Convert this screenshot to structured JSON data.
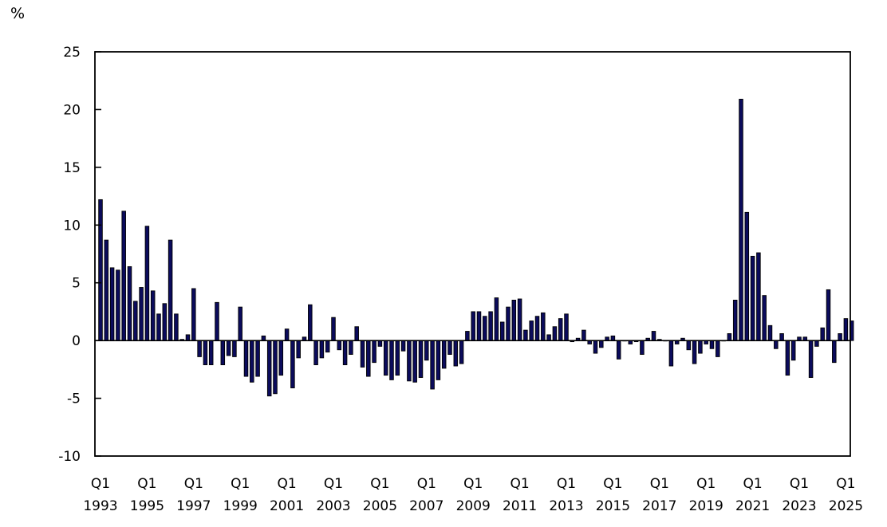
{
  "chart_data": {
    "type": "bar",
    "title": "",
    "ylabel": "%",
    "xlabel": "",
    "ylim": [
      -10,
      25
    ],
    "yticks": [
      -10,
      -5,
      0,
      5,
      10,
      15,
      20,
      25
    ],
    "grid": false,
    "legend": null,
    "bar_color": "#0b0b5c",
    "bar_edge_color": "#000000",
    "start": "1993 Q1",
    "end": "2025 Q2",
    "frequency": "quarterly",
    "x_tick_labels": [
      {
        "q": "Q1",
        "year": "1993",
        "index": 0
      },
      {
        "q": "Q1",
        "year": "1995",
        "index": 8
      },
      {
        "q": "Q1",
        "year": "1997",
        "index": 16
      },
      {
        "q": "Q1",
        "year": "1999",
        "index": 24
      },
      {
        "q": "Q1",
        "year": "2001",
        "index": 32
      },
      {
        "q": "Q1",
        "year": "2003",
        "index": 40
      },
      {
        "q": "Q1",
        "year": "2005",
        "index": 48
      },
      {
        "q": "Q1",
        "year": "2007",
        "index": 56
      },
      {
        "q": "Q1",
        "year": "2009",
        "index": 64
      },
      {
        "q": "Q1",
        "year": "2011",
        "index": 72
      },
      {
        "q": "Q1",
        "year": "2013",
        "index": 80
      },
      {
        "q": "Q1",
        "year": "2015",
        "index": 88
      },
      {
        "q": "Q1",
        "year": "2017",
        "index": 96
      },
      {
        "q": "Q1",
        "year": "2019",
        "index": 104
      },
      {
        "q": "Q1",
        "year": "2021",
        "index": 112
      },
      {
        "q": "Q1",
        "year": "2023",
        "index": 120
      },
      {
        "q": "Q1",
        "year": "2025",
        "index": 128
      }
    ],
    "values": [
      12.2,
      8.7,
      6.3,
      6.1,
      11.2,
      6.4,
      3.4,
      4.6,
      9.9,
      4.3,
      2.3,
      3.2,
      8.7,
      2.3,
      0.1,
      0.5,
      4.5,
      -1.4,
      -2.1,
      -2.1,
      3.3,
      -2.1,
      -1.3,
      -1.4,
      2.9,
      -3.1,
      -3.6,
      -3.1,
      0.4,
      -4.8,
      -4.6,
      -3.0,
      1.0,
      -4.1,
      -1.5,
      0.3,
      3.1,
      -2.1,
      -1.5,
      -1.0,
      2.0,
      -0.8,
      -2.1,
      -1.2,
      1.2,
      -2.3,
      -3.1,
      -1.9,
      -0.5,
      -3.0,
      -3.4,
      -3.0,
      -0.9,
      -3.5,
      -3.6,
      -3.2,
      -1.7,
      -4.2,
      -3.4,
      -2.4,
      -1.2,
      -2.2,
      -2.0,
      0.8,
      2.5,
      2.5,
      2.1,
      2.5,
      3.7,
      1.6,
      2.9,
      3.5,
      3.6,
      0.9,
      1.7,
      2.1,
      2.4,
      0.5,
      1.2,
      1.9,
      2.3,
      -0.1,
      0.2,
      0.9,
      -0.3,
      -1.1,
      -0.6,
      0.3,
      0.4,
      -1.6,
      0.0,
      -0.3,
      -0.1,
      -1.2,
      0.2,
      0.8,
      0.1,
      0.0,
      -2.2,
      -0.3,
      0.2,
      -0.8,
      -2.0,
      -1.1,
      -0.3,
      -0.7,
      -1.4,
      0.0,
      0.6,
      3.5,
      20.9,
      11.1,
      7.3,
      7.6,
      3.9,
      1.3,
      -0.7,
      0.6,
      -3.0,
      -1.7,
      0.3,
      0.3,
      -3.2,
      -0.5,
      1.1,
      4.4,
      -1.9,
      0.6,
      1.9,
      1.7
    ]
  }
}
